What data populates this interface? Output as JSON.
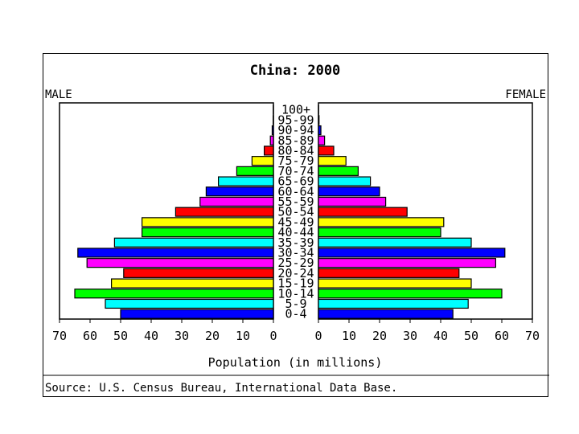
{
  "chart_data": {
    "type": "bar",
    "title": "China: 2000",
    "left_label": "MALE",
    "right_label": "FEMALE",
    "xlabel": "Population (in millions)",
    "source": "Source: U.S. Census Bureau, International Data Base.",
    "xlim": [
      0,
      70
    ],
    "x_ticks": [
      "70",
      "60",
      "50",
      "40",
      "30",
      "20",
      "10",
      "0"
    ],
    "x_ticks_right": [
      "0",
      "10",
      "20",
      "30",
      "40",
      "50",
      "60",
      "70"
    ],
    "categories": [
      "0-4",
      "5-9",
      "10-14",
      "15-19",
      "20-24",
      "25-29",
      "30-34",
      "35-39",
      "40-44",
      "45-49",
      "50-54",
      "55-59",
      "60-64",
      "65-69",
      "70-74",
      "75-79",
      "80-84",
      "85-89",
      "90-94",
      "95-99",
      "100+"
    ],
    "series": [
      {
        "name": "MALE",
        "values": [
          50,
          55,
          65,
          53,
          49,
          61,
          64,
          52,
          43,
          43,
          32,
          24,
          22,
          18,
          12,
          7,
          3,
          1,
          0.4,
          0.1,
          0.05
        ]
      },
      {
        "name": "FEMALE",
        "values": [
          44,
          49,
          60,
          50,
          46,
          58,
          61,
          50,
          40,
          41,
          29,
          22,
          20,
          17,
          13,
          9,
          5,
          2,
          0.8,
          0.2,
          0.05
        ]
      }
    ],
    "colors": [
      "#0000ff",
      "#00ffff",
      "#00ff00",
      "#ffff00",
      "#ff0000",
      "#ff00ff",
      "#0000ff",
      "#00ffff",
      "#00ff00",
      "#ffff00",
      "#ff0000",
      "#ff00ff",
      "#0000ff",
      "#00ffff",
      "#00ff00",
      "#ffff00",
      "#ff0000",
      "#ff00ff",
      "#0000ff",
      "#00ffff",
      "#00ff00"
    ],
    "grid": false
  }
}
